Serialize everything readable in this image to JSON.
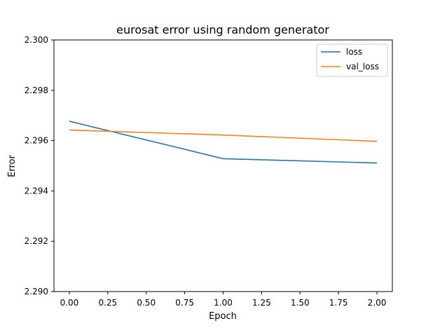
{
  "chart_data": {
    "type": "line",
    "title": "eurosat error using random generator",
    "xlabel": "Epoch",
    "ylabel": "Error",
    "x": [
      0,
      1,
      2
    ],
    "xlim": [
      -0.1,
      2.1
    ],
    "ylim": [
      2.29,
      2.3
    ],
    "xticks": [
      0.0,
      0.25,
      0.5,
      0.75,
      1.0,
      1.25,
      1.5,
      1.75,
      2.0
    ],
    "xtick_labels": [
      "0.00",
      "0.25",
      "0.50",
      "0.75",
      "1.00",
      "1.25",
      "1.50",
      "1.75",
      "2.00"
    ],
    "yticks": [
      2.29,
      2.292,
      2.294,
      2.296,
      2.298,
      2.3
    ],
    "ytick_labels": [
      "2.290",
      "2.292",
      "2.294",
      "2.296",
      "2.298",
      "2.300"
    ],
    "grid": false,
    "legend_position": "top-right",
    "series": [
      {
        "name": "loss",
        "color": "#1f77b4",
        "values": [
          2.29677,
          2.29528,
          2.29511
        ]
      },
      {
        "name": "val_loss",
        "color": "#ff7f0e",
        "values": [
          2.29642,
          2.29622,
          2.29597
        ]
      }
    ]
  }
}
